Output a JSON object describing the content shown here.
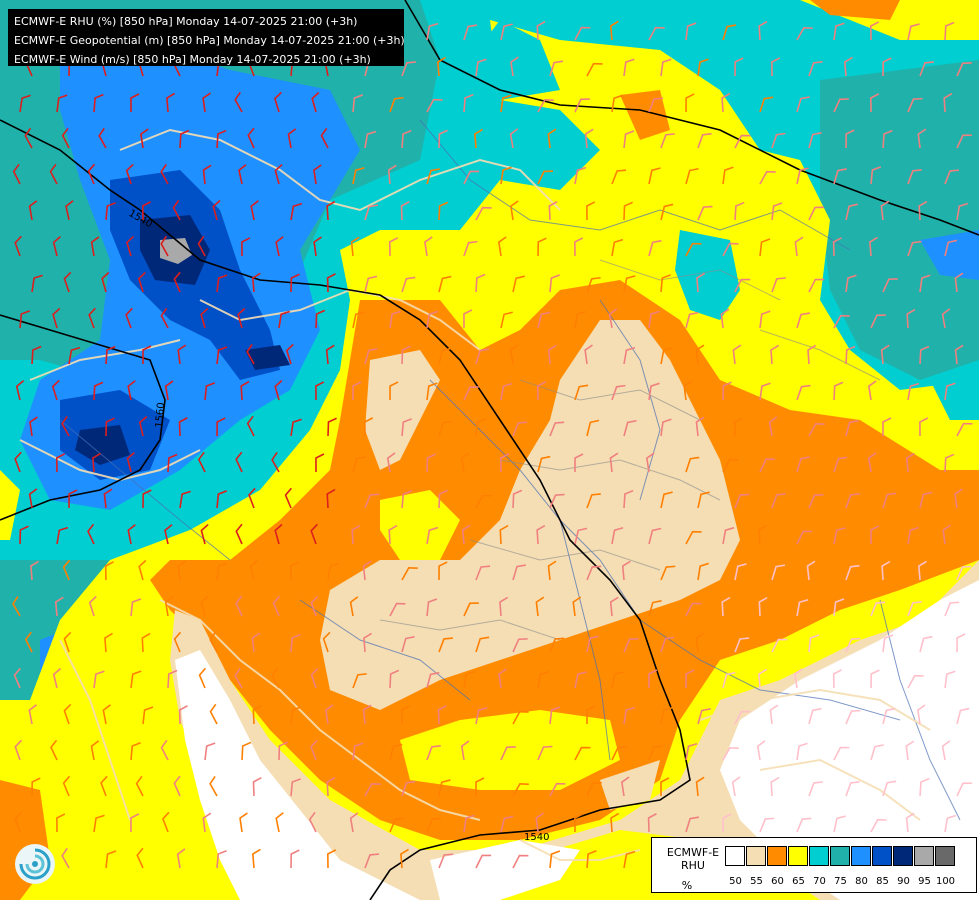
{
  "header": {
    "lines": [
      "ECMWF-E RHU (%) [850 hPa] Monday 14-07-2025 21:00 (+3h)",
      "ECMWF-E Geopotential (m) [850 hPa] Monday 14-07-2025 21:00 (+3h)",
      "ECMWF-E Wind (m/s) [850 hPa] Monday 14-07-2025 21:00 (+3h)"
    ]
  },
  "legend": {
    "name_line1": "ECMWF-E",
    "name_line2": "RHU",
    "unit": "%",
    "ticks": [
      "50",
      "55",
      "60",
      "65",
      "70",
      "75",
      "80",
      "85",
      "90",
      "95",
      "100"
    ],
    "colors": [
      "#ffffff",
      "#f5deb3",
      "#ff8c00",
      "#ffff00",
      "#00ced1",
      "#20b2aa",
      "#1e90ff",
      "#0050c8",
      "#002878",
      "#a9a9a9",
      "#696969"
    ]
  },
  "contours": {
    "labels": [
      "1540",
      "1560",
      "1540"
    ],
    "color": "#000000"
  },
  "map": {
    "background": "#00ced1",
    "border_color": "#f5deb3",
    "river_color": "#4a6fb5",
    "wind_colors": [
      "#dc1e1e",
      "#ff7f00",
      "#f08080",
      "#ffc0cb"
    ]
  },
  "logo": "ecmwf-swirl-logo"
}
